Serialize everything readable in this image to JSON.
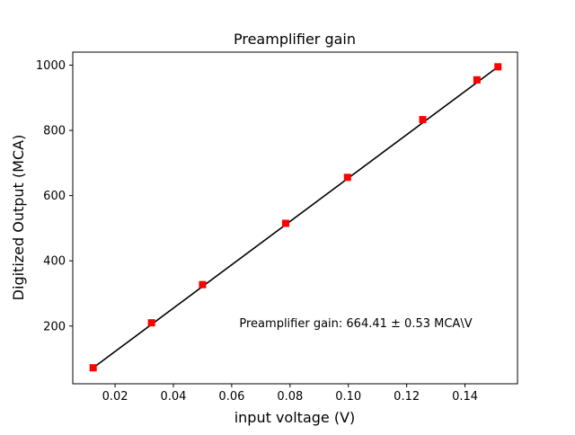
{
  "chart_data": {
    "type": "scatter",
    "title": "Preamplifier gain",
    "xlabel": "input voltage (V)",
    "ylabel": "Digitized Output (MCA)",
    "xlim": [
      0.0055,
      0.158
    ],
    "ylim": [
      23,
      1040
    ],
    "xticks": [
      0.02,
      0.04,
      0.06,
      0.08,
      0.1,
      0.12,
      0.14
    ],
    "xtick_labels": [
      "0.02",
      "0.04",
      "0.06",
      "0.08",
      "0.10",
      "0.12",
      "0.14"
    ],
    "yticks": [
      200,
      400,
      600,
      800,
      1000
    ],
    "ytick_labels": [
      "200",
      "400",
      "600",
      "800",
      "1000"
    ],
    "grid": false,
    "annotation": "Preamplifier gain: 664.41 ± 0.53 MCA\\V",
    "series": [
      {
        "kind": "markers",
        "marker": "square",
        "color": "#ff0000",
        "x": [
          0.0125,
          0.0325,
          0.05,
          0.0785,
          0.0997,
          0.1255,
          0.1441,
          0.1513
        ],
        "y": [
          72,
          210,
          327,
          515,
          656,
          833,
          955,
          995
        ]
      },
      {
        "kind": "fit-line",
        "color": "#000000",
        "x": [
          0.0125,
          0.1513
        ],
        "y": [
          72,
          995
        ]
      }
    ]
  }
}
